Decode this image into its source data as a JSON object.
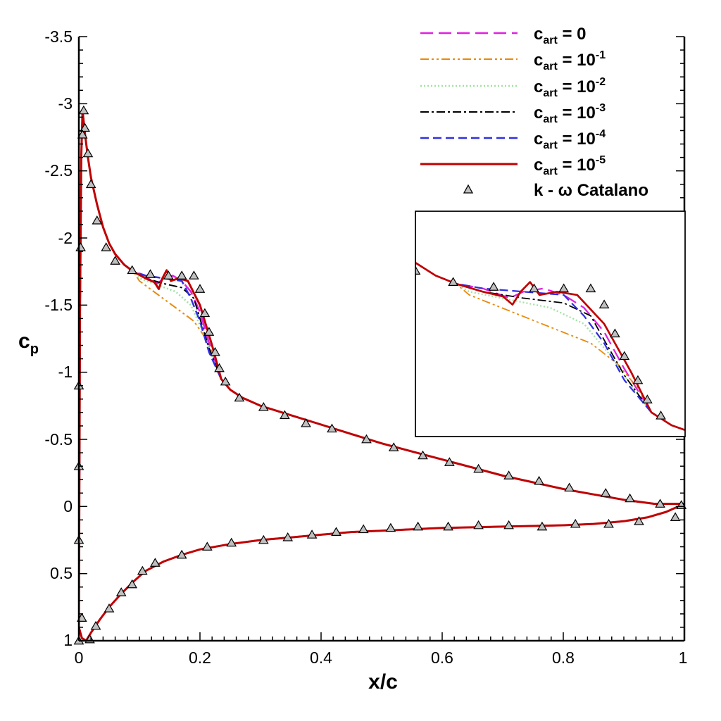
{
  "chart_data": {
    "type": "line",
    "xlabel": "x/c",
    "ylabel": "c",
    "ylabel_sub": "p",
    "xlim": [
      0,
      1
    ],
    "ylim": [
      1,
      -3.5
    ],
    "y_inverted": true,
    "x_ticks": [
      "0",
      "0.2",
      "0.4",
      "0.6",
      "0.8",
      "1"
    ],
    "y_ticks": [
      "-3.5",
      "-3",
      "-2.5",
      "-2",
      "-1.5",
      "-1",
      "-0.5",
      "0",
      "0.5",
      "1"
    ],
    "legend_position": "top-right",
    "series": [
      {
        "name": "c_art = 0",
        "label_base": "c",
        "label_sub": "art",
        "label_rest": " = 0",
        "label_sup": "",
        "color": "#e020e0",
        "dash": "18,8",
        "width": 2.5
      },
      {
        "name": "c_art = 10^-1",
        "label_base": "c",
        "label_sub": "art",
        "label_rest": " = 10",
        "label_sup": "-1",
        "color": "#e8890c",
        "dash": "12,4,3,4,3,4",
        "width": 2
      },
      {
        "name": "c_art = 10^-2",
        "label_base": "c",
        "label_sub": "art",
        "label_rest": " = 10",
        "label_sup": "-2",
        "color": "#9ee39e",
        "dash": "2,3",
        "width": 2.5
      },
      {
        "name": "c_art = 10^-3",
        "label_base": "c",
        "label_sub": "art",
        "label_rest": " = 10",
        "label_sup": "-3",
        "color": "#000000",
        "dash": "12,4,3,4",
        "width": 2
      },
      {
        "name": "c_art = 10^-4",
        "label_base": "c",
        "label_sub": "art",
        "label_rest": " = 10",
        "label_sup": "-4",
        "color": "#3030e0",
        "dash": "12,6",
        "width": 2.5
      },
      {
        "name": "c_art = 10^-5",
        "label_base": "c",
        "label_sub": "art",
        "label_rest": " = 10",
        "label_sup": "-5",
        "color": "#c00000",
        "dash": "",
        "width": 3
      }
    ],
    "reference": {
      "name": "k - ω Catalano",
      "marker": "triangle",
      "color": "#c0c0c0",
      "points": [
        [
          0.0,
          1.0
        ],
        [
          0.0,
          0.25
        ],
        [
          0.0,
          -0.3
        ],
        [
          0.0,
          -0.9
        ],
        [
          0.003,
          -1.93
        ],
        [
          0.006,
          -2.77
        ],
        [
          0.008,
          -2.95
        ],
        [
          0.01,
          -2.82
        ],
        [
          0.015,
          -2.63
        ],
        [
          0.02,
          -2.4
        ],
        [
          0.03,
          -2.13
        ],
        [
          0.045,
          -1.93
        ],
        [
          0.06,
          -1.83
        ],
        [
          0.088,
          -1.76
        ],
        [
          0.118,
          -1.73
        ],
        [
          0.148,
          -1.72
        ],
        [
          0.17,
          -1.72
        ],
        [
          0.19,
          -1.72
        ],
        [
          0.2,
          -1.62
        ],
        [
          0.208,
          -1.44
        ],
        [
          0.215,
          -1.3
        ],
        [
          0.225,
          -1.15
        ],
        [
          0.232,
          -1.03
        ],
        [
          0.242,
          -0.93
        ],
        [
          0.265,
          -0.81
        ],
        [
          0.305,
          -0.74
        ],
        [
          0.34,
          -0.68
        ],
        [
          0.375,
          -0.62
        ],
        [
          0.418,
          -0.58
        ],
        [
          0.475,
          -0.5
        ],
        [
          0.52,
          -0.44
        ],
        [
          0.568,
          -0.38
        ],
        [
          0.612,
          -0.33
        ],
        [
          0.66,
          -0.28
        ],
        [
          0.71,
          -0.23
        ],
        [
          0.76,
          -0.19
        ],
        [
          0.81,
          -0.14
        ],
        [
          0.87,
          -0.1
        ],
        [
          0.91,
          -0.06
        ],
        [
          0.96,
          -0.02
        ],
        [
          0.995,
          -0.01
        ],
        [
          0.005,
          0.83
        ],
        [
          0.018,
          0.99
        ],
        [
          0.028,
          0.89
        ],
        [
          0.05,
          0.76
        ],
        [
          0.07,
          0.64
        ],
        [
          0.088,
          0.58
        ],
        [
          0.105,
          0.48
        ],
        [
          0.126,
          0.42
        ],
        [
          0.17,
          0.36
        ],
        [
          0.212,
          0.3
        ],
        [
          0.252,
          0.27
        ],
        [
          0.305,
          0.25
        ],
        [
          0.345,
          0.23
        ],
        [
          0.385,
          0.21
        ],
        [
          0.425,
          0.19
        ],
        [
          0.47,
          0.17
        ],
        [
          0.515,
          0.16
        ],
        [
          0.56,
          0.15
        ],
        [
          0.61,
          0.15
        ],
        [
          0.66,
          0.14
        ],
        [
          0.71,
          0.14
        ],
        [
          0.765,
          0.15
        ],
        [
          0.82,
          0.13
        ],
        [
          0.875,
          0.13
        ],
        [
          0.925,
          0.11
        ],
        [
          0.985,
          0.08
        ]
      ]
    },
    "lower_surface": [
      [
        0.0,
        0.9
      ],
      [
        0.005,
        0.98
      ],
      [
        0.012,
        1.0
      ],
      [
        0.02,
        0.94
      ],
      [
        0.035,
        0.84
      ],
      [
        0.05,
        0.75
      ],
      [
        0.07,
        0.65
      ],
      [
        0.09,
        0.56
      ],
      [
        0.11,
        0.48
      ],
      [
        0.14,
        0.41
      ],
      [
        0.17,
        0.36
      ],
      [
        0.2,
        0.32
      ],
      [
        0.25,
        0.28
      ],
      [
        0.3,
        0.25
      ],
      [
        0.35,
        0.23
      ],
      [
        0.4,
        0.21
      ],
      [
        0.45,
        0.19
      ],
      [
        0.5,
        0.18
      ],
      [
        0.55,
        0.17
      ],
      [
        0.6,
        0.16
      ],
      [
        0.65,
        0.155
      ],
      [
        0.7,
        0.15
      ],
      [
        0.75,
        0.145
      ],
      [
        0.8,
        0.14
      ],
      [
        0.85,
        0.13
      ],
      [
        0.9,
        0.11
      ],
      [
        0.94,
        0.08
      ],
      [
        0.97,
        0.04
      ],
      [
        1.0,
        -0.02
      ]
    ],
    "upper_surface_common": [
      [
        0.0,
        0.9
      ],
      [
        0.002,
        -1.5
      ],
      [
        0.004,
        -2.6
      ],
      [
        0.006,
        -2.95
      ],
      [
        0.01,
        -2.78
      ],
      [
        0.015,
        -2.6
      ],
      [
        0.02,
        -2.45
      ],
      [
        0.03,
        -2.25
      ],
      [
        0.04,
        -2.08
      ],
      [
        0.05,
        -1.96
      ],
      [
        0.06,
        -1.88
      ],
      [
        0.075,
        -1.8
      ],
      [
        0.09,
        -1.75
      ]
    ],
    "upper_surface_tail": [
      [
        0.235,
        -0.95
      ],
      [
        0.25,
        -0.87
      ],
      [
        0.27,
        -0.81
      ],
      [
        0.3,
        -0.75
      ],
      [
        0.35,
        -0.68
      ],
      [
        0.4,
        -0.61
      ],
      [
        0.45,
        -0.54
      ],
      [
        0.5,
        -0.47
      ],
      [
        0.55,
        -0.41
      ],
      [
        0.6,
        -0.35
      ],
      [
        0.65,
        -0.29
      ],
      [
        0.7,
        -0.23
      ],
      [
        0.75,
        -0.18
      ],
      [
        0.8,
        -0.13
      ],
      [
        0.85,
        -0.09
      ],
      [
        0.9,
        -0.05
      ],
      [
        0.95,
        -0.02
      ],
      [
        1.0,
        -0.02
      ]
    ],
    "upper_surface_shock": {
      "c_art = 0": [
        [
          0.11,
          -1.72
        ],
        [
          0.13,
          -1.66
        ],
        [
          0.14,
          -1.7
        ],
        [
          0.155,
          -1.72
        ],
        [
          0.17,
          -1.68
        ],
        [
          0.185,
          -1.6
        ],
        [
          0.2,
          -1.45
        ],
        [
          0.215,
          -1.22
        ]
      ],
      "c_art = 10^-1": [
        [
          0.1,
          -1.68
        ],
        [
          0.13,
          -1.58
        ],
        [
          0.16,
          -1.48
        ],
        [
          0.19,
          -1.38
        ],
        [
          0.21,
          -1.25
        ],
        [
          0.225,
          -1.1
        ]
      ],
      "c_art = 10^-2": [
        [
          0.1,
          -1.7
        ],
        [
          0.13,
          -1.65
        ],
        [
          0.16,
          -1.6
        ],
        [
          0.185,
          -1.5
        ],
        [
          0.205,
          -1.3
        ],
        [
          0.22,
          -1.12
        ]
      ],
      "c_art = 10^-3": [
        [
          0.11,
          -1.7
        ],
        [
          0.14,
          -1.66
        ],
        [
          0.17,
          -1.63
        ],
        [
          0.19,
          -1.55
        ],
        [
          0.2,
          -1.4
        ],
        [
          0.215,
          -1.18
        ]
      ],
      "c_art = 10^-4": [
        [
          0.11,
          -1.72
        ],
        [
          0.14,
          -1.7
        ],
        [
          0.17,
          -1.68
        ],
        [
          0.185,
          -1.55
        ],
        [
          0.2,
          -1.38
        ],
        [
          0.215,
          -1.15
        ]
      ],
      "c_art = 10^-5": [
        [
          0.11,
          -1.7
        ],
        [
          0.125,
          -1.67
        ],
        [
          0.132,
          -1.62
        ],
        [
          0.138,
          -1.7
        ],
        [
          0.145,
          -1.76
        ],
        [
          0.152,
          -1.68
        ],
        [
          0.165,
          -1.7
        ],
        [
          0.18,
          -1.68
        ],
        [
          0.2,
          -1.5
        ],
        [
          0.22,
          -1.2
        ]
      ]
    },
    "inset": {
      "description": "zoom on shock region",
      "xlim": [
        0.06,
        0.26
      ],
      "ylim": [
        -2.2,
        -0.8
      ]
    }
  }
}
